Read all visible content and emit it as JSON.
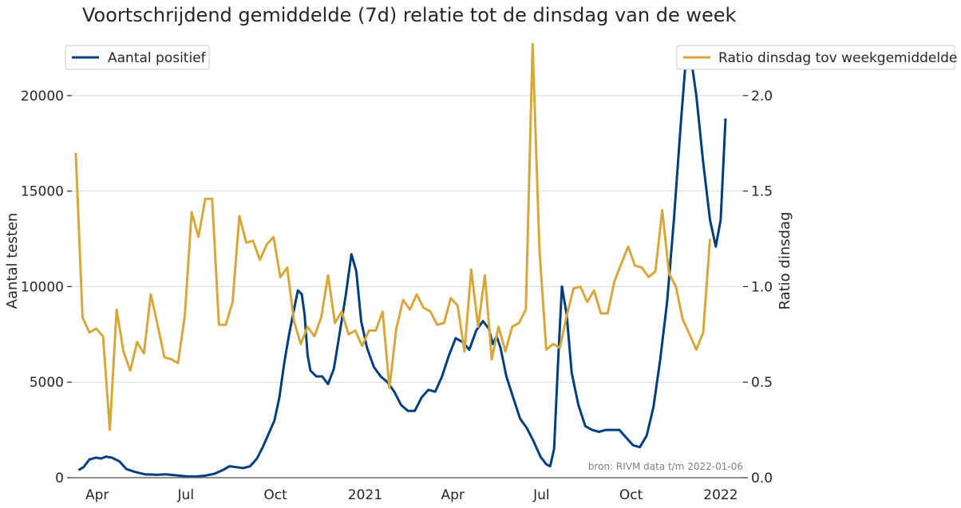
{
  "chart_data": {
    "type": "line",
    "title": "Voortschrijdend gemiddelde (7d) relatie tot de dinsdag van de week",
    "ylabel_left": "Aantal testen",
    "ylabel_right": "Ratio dinsdag",
    "ylim_left": [
      0,
      23000
    ],
    "ylim_right": [
      0.0,
      2.3
    ],
    "yticks_left": [
      0,
      5000,
      10000,
      15000,
      20000
    ],
    "yticks_left_labels": [
      "0",
      "5000",
      "10000",
      "15000",
      "20000"
    ],
    "yticks_right": [
      0.0,
      0.5,
      1.0,
      1.5,
      2.0
    ],
    "yticks_right_labels": [
      "0.0",
      "0.5",
      "1.0",
      "1.5",
      "2.0"
    ],
    "xlim": [
      "2020-03-06",
      "2022-01-24"
    ],
    "xticks": [
      "2020-04-01",
      "2020-07-01",
      "2020-10-01",
      "2021-01-01",
      "2021-04-01",
      "2021-07-01",
      "2021-10-01",
      "2022-01-01"
    ],
    "xtick_labels": [
      "Apr",
      "Jul",
      "Oct",
      "2021",
      "Apr",
      "Jul",
      "Oct",
      "2022"
    ],
    "grid": "horizontal",
    "source": "bron: RIVM data t/m 2022-01-06",
    "colors": {
      "positief": "#003f7f",
      "ratio": "#d8a73a",
      "grid": "#d9d9d9",
      "zero_line": "#6b6b6b"
    },
    "series": [
      {
        "name": "Aantal positief",
        "axis": "left",
        "legend_position": "top-left",
        "points": [
          [
            "2020-03-13",
            400
          ],
          [
            "2020-03-18",
            550
          ],
          [
            "2020-03-24",
            950
          ],
          [
            "2020-03-31",
            1050
          ],
          [
            "2020-04-05",
            1000
          ],
          [
            "2020-04-10",
            1100
          ],
          [
            "2020-04-16",
            1050
          ],
          [
            "2020-04-24",
            850
          ],
          [
            "2020-05-01",
            450
          ],
          [
            "2020-05-10",
            300
          ],
          [
            "2020-05-20",
            180
          ],
          [
            "2020-06-01",
            150
          ],
          [
            "2020-06-10",
            180
          ],
          [
            "2020-06-20",
            130
          ],
          [
            "2020-07-01",
            70
          ],
          [
            "2020-07-10",
            60
          ],
          [
            "2020-07-20",
            100
          ],
          [
            "2020-07-30",
            200
          ],
          [
            "2020-08-08",
            400
          ],
          [
            "2020-08-15",
            600
          ],
          [
            "2020-08-22",
            550
          ],
          [
            "2020-08-29",
            500
          ],
          [
            "2020-09-05",
            600
          ],
          [
            "2020-09-12",
            1000
          ],
          [
            "2020-09-18",
            1600
          ],
          [
            "2020-09-24",
            2300
          ],
          [
            "2020-09-30",
            3000
          ],
          [
            "2020-10-05",
            4200
          ],
          [
            "2020-10-10",
            6000
          ],
          [
            "2020-10-15",
            7500
          ],
          [
            "2020-10-20",
            8800
          ],
          [
            "2020-10-24",
            9800
          ],
          [
            "2020-10-28",
            9600
          ],
          [
            "2020-10-31",
            8500
          ],
          [
            "2020-11-03",
            6400
          ],
          [
            "2020-11-06",
            5600
          ],
          [
            "2020-11-12",
            5300
          ],
          [
            "2020-11-18",
            5300
          ],
          [
            "2020-11-24",
            4900
          ],
          [
            "2020-11-30",
            5700
          ],
          [
            "2020-12-06",
            7600
          ],
          [
            "2020-12-12",
            9500
          ],
          [
            "2020-12-18",
            11700
          ],
          [
            "2020-12-23",
            10800
          ],
          [
            "2020-12-28",
            8200
          ],
          [
            "2021-01-03",
            6800
          ],
          [
            "2021-01-10",
            5800
          ],
          [
            "2021-01-17",
            5300
          ],
          [
            "2021-01-24",
            5000
          ],
          [
            "2021-01-31",
            4500
          ],
          [
            "2021-02-07",
            3800
          ],
          [
            "2021-02-14",
            3500
          ],
          [
            "2021-02-21",
            3500
          ],
          [
            "2021-02-28",
            4200
          ],
          [
            "2021-03-07",
            4600
          ],
          [
            "2021-03-14",
            4500
          ],
          [
            "2021-03-21",
            5300
          ],
          [
            "2021-03-28",
            6400
          ],
          [
            "2021-04-04",
            7300
          ],
          [
            "2021-04-11",
            7100
          ],
          [
            "2021-04-18",
            6700
          ],
          [
            "2021-04-25",
            7700
          ],
          [
            "2021-05-02",
            8200
          ],
          [
            "2021-05-08",
            7800
          ],
          [
            "2021-05-12",
            7000
          ],
          [
            "2021-05-16",
            7400
          ],
          [
            "2021-05-20",
            6800
          ],
          [
            "2021-05-26",
            5300
          ],
          [
            "2021-06-02",
            4200
          ],
          [
            "2021-06-09",
            3100
          ],
          [
            "2021-06-16",
            2600
          ],
          [
            "2021-06-23",
            1900
          ],
          [
            "2021-06-30",
            1100
          ],
          [
            "2021-07-06",
            700
          ],
          [
            "2021-07-10",
            600
          ],
          [
            "2021-07-14",
            1500
          ],
          [
            "2021-07-18",
            6000
          ],
          [
            "2021-07-22",
            10000
          ],
          [
            "2021-07-27",
            8500
          ],
          [
            "2021-08-01",
            5500
          ],
          [
            "2021-08-08",
            3800
          ],
          [
            "2021-08-15",
            2700
          ],
          [
            "2021-08-22",
            2500
          ],
          [
            "2021-08-29",
            2400
          ],
          [
            "2021-09-05",
            2500
          ],
          [
            "2021-09-12",
            2500
          ],
          [
            "2021-09-19",
            2500
          ],
          [
            "2021-09-26",
            2100
          ],
          [
            "2021-10-03",
            1700
          ],
          [
            "2021-10-10",
            1600
          ],
          [
            "2021-10-17",
            2200
          ],
          [
            "2021-10-24",
            3700
          ],
          [
            "2021-10-31",
            6200
          ],
          [
            "2021-11-07",
            9200
          ],
          [
            "2021-11-14",
            13500
          ],
          [
            "2021-11-21",
            18500
          ],
          [
            "2021-11-27",
            22400
          ],
          [
            "2021-12-02",
            21800
          ],
          [
            "2021-12-07",
            20000
          ],
          [
            "2021-12-14",
            16500
          ],
          [
            "2021-12-21",
            13500
          ],
          [
            "2021-12-27",
            12100
          ],
          [
            "2022-01-01",
            13500
          ],
          [
            "2022-01-06",
            18800
          ]
        ]
      },
      {
        "name": "Ratio dinsdag tov weekgemiddelde",
        "axis": "right",
        "legend_position": "top-right",
        "points": [
          [
            "2020-03-10",
            1.7
          ],
          [
            "2020-03-17",
            0.84
          ],
          [
            "2020-03-24",
            0.76
          ],
          [
            "2020-03-31",
            0.78
          ],
          [
            "2020-04-07",
            0.74
          ],
          [
            "2020-04-14",
            0.25
          ],
          [
            "2020-04-21",
            0.88
          ],
          [
            "2020-04-28",
            0.66
          ],
          [
            "2020-05-05",
            0.56
          ],
          [
            "2020-05-12",
            0.71
          ],
          [
            "2020-05-19",
            0.65
          ],
          [
            "2020-05-26",
            0.96
          ],
          [
            "2020-06-02",
            0.8
          ],
          [
            "2020-06-09",
            0.63
          ],
          [
            "2020-06-16",
            0.62
          ],
          [
            "2020-06-23",
            0.6
          ],
          [
            "2020-06-30",
            0.85
          ],
          [
            "2020-07-07",
            1.39
          ],
          [
            "2020-07-14",
            1.26
          ],
          [
            "2020-07-21",
            1.46
          ],
          [
            "2020-07-28",
            1.46
          ],
          [
            "2020-08-04",
            0.8
          ],
          [
            "2020-08-11",
            0.8
          ],
          [
            "2020-08-18",
            0.92
          ],
          [
            "2020-08-25",
            1.37
          ],
          [
            "2020-09-01",
            1.23
          ],
          [
            "2020-09-08",
            1.24
          ],
          [
            "2020-09-15",
            1.14
          ],
          [
            "2020-09-22",
            1.22
          ],
          [
            "2020-09-29",
            1.26
          ],
          [
            "2020-10-06",
            1.05
          ],
          [
            "2020-10-13",
            1.1
          ],
          [
            "2020-10-20",
            0.82
          ],
          [
            "2020-10-27",
            0.7
          ],
          [
            "2020-11-03",
            0.79
          ],
          [
            "2020-11-10",
            0.74
          ],
          [
            "2020-11-17",
            0.84
          ],
          [
            "2020-11-24",
            1.06
          ],
          [
            "2020-12-01",
            0.81
          ],
          [
            "2020-12-08",
            0.87
          ],
          [
            "2020-12-15",
            0.75
          ],
          [
            "2020-12-22",
            0.77
          ],
          [
            "2020-12-29",
            0.69
          ],
          [
            "2021-01-05",
            0.77
          ],
          [
            "2021-01-12",
            0.77
          ],
          [
            "2021-01-19",
            0.87
          ],
          [
            "2021-01-26",
            0.47
          ],
          [
            "2021-02-02",
            0.78
          ],
          [
            "2021-02-09",
            0.93
          ],
          [
            "2021-02-16",
            0.88
          ],
          [
            "2021-02-23",
            0.96
          ],
          [
            "2021-03-02",
            0.89
          ],
          [
            "2021-03-09",
            0.87
          ],
          [
            "2021-03-16",
            0.8
          ],
          [
            "2021-03-23",
            0.81
          ],
          [
            "2021-03-30",
            0.94
          ],
          [
            "2021-04-06",
            0.9
          ],
          [
            "2021-04-13",
            0.66
          ],
          [
            "2021-04-20",
            1.09
          ],
          [
            "2021-04-27",
            0.79
          ],
          [
            "2021-05-04",
            1.06
          ],
          [
            "2021-05-11",
            0.62
          ],
          [
            "2021-05-18",
            0.79
          ],
          [
            "2021-05-25",
            0.66
          ],
          [
            "2021-06-01",
            0.79
          ],
          [
            "2021-06-08",
            0.81
          ],
          [
            "2021-06-15",
            0.88
          ],
          [
            "2021-06-22",
            2.27
          ],
          [
            "2021-06-29",
            1.19
          ],
          [
            "2021-07-06",
            0.67
          ],
          [
            "2021-07-13",
            0.7
          ],
          [
            "2021-07-20",
            0.68
          ],
          [
            "2021-07-27",
            0.85
          ],
          [
            "2021-08-03",
            0.99
          ],
          [
            "2021-08-10",
            1.0
          ],
          [
            "2021-08-17",
            0.92
          ],
          [
            "2021-08-24",
            0.98
          ],
          [
            "2021-08-31",
            0.86
          ],
          [
            "2021-09-07",
            0.86
          ],
          [
            "2021-09-14",
            1.03
          ],
          [
            "2021-09-21",
            1.12
          ],
          [
            "2021-09-28",
            1.21
          ],
          [
            "2021-10-05",
            1.11
          ],
          [
            "2021-10-12",
            1.1
          ],
          [
            "2021-10-19",
            1.05
          ],
          [
            "2021-10-26",
            1.08
          ],
          [
            "2021-11-02",
            1.4
          ],
          [
            "2021-11-09",
            1.07
          ],
          [
            "2021-11-16",
            1.0
          ],
          [
            "2021-11-23",
            0.83
          ],
          [
            "2021-11-30",
            0.75
          ],
          [
            "2021-12-07",
            0.67
          ],
          [
            "2021-12-14",
            0.76
          ],
          [
            "2021-12-21",
            1.25
          ]
        ]
      }
    ]
  }
}
